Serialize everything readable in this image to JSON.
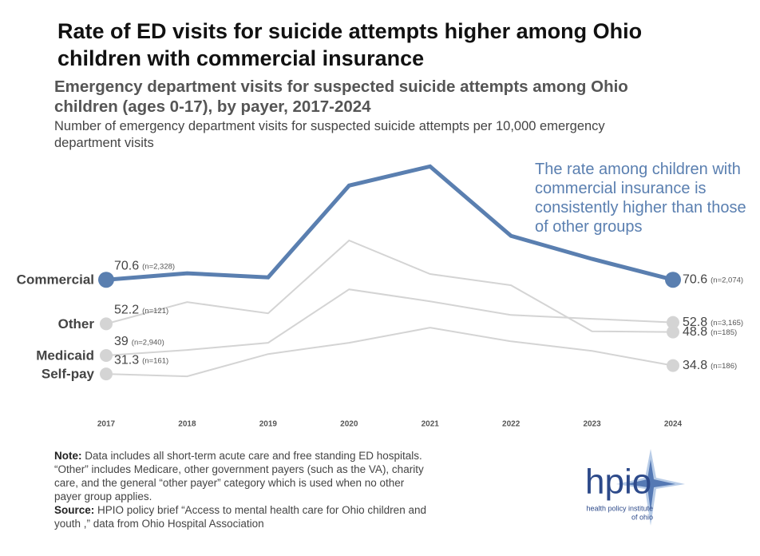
{
  "chart_data": {
    "type": "line",
    "title": "Rate of ED visits for suicide attempts higher among Ohio children with commercial insurance",
    "subtitle": "Emergency department visits for suspected suicide attempts among Ohio children (ages 0-17), by payer, 2017-2024",
    "y_label": "Number of emergency department visits for suspected suicide attempts per 10,000 emergency department visits",
    "annotation": "The rate among children with commercial insurance is consistently higher than those of other groups",
    "categories": [
      "2017",
      "2018",
      "2019",
      "2020",
      "2021",
      "2022",
      "2023",
      "2024"
    ],
    "ylim": [
      20,
      130
    ],
    "series": [
      {
        "name": "Commercial",
        "color": "#5a7fb0",
        "line_width": 5,
        "values": [
          70.6,
          73.3,
          71.6,
          109.9,
          117.9,
          88.9,
          79.3,
          70.6
        ],
        "n_labels": [
          "(n=2,328)",
          "(n=2,074)"
        ]
      },
      {
        "name": "Other",
        "color": "#d4d4d4",
        "line_width": 2,
        "values": [
          52.2,
          61.3,
          56.6,
          87.0,
          73.0,
          68.3,
          49.1,
          48.8
        ],
        "n_labels": [
          "(n=121)",
          "(n=185)"
        ]
      },
      {
        "name": "Medicaid",
        "color": "#d4d4d4",
        "line_width": 2,
        "values": [
          39,
          41.3,
          44.3,
          66.6,
          61.6,
          55.9,
          54.3,
          52.8
        ],
        "n_labels": [
          "(n=2,940)",
          "(n=3,165)"
        ]
      },
      {
        "name": "Self-pay",
        "color": "#d4d4d4",
        "line_width": 2,
        "values": [
          31.3,
          30.3,
          39.6,
          44.3,
          50.6,
          44.9,
          40.9,
          34.8
        ],
        "n_labels": [
          "(n=161)",
          "(n=186)"
        ]
      }
    ]
  },
  "note": {
    "label": "Note:",
    "text": "Data includes all short-term acute care and free standing ED hospitals. “Other” includes Medicare, other government payers (such as the VA), charity care, and the general “other payer” category which is used when no other payer group applies."
  },
  "source": {
    "label": "Source:",
    "text": "HPIO policy brief “Access to mental health care for Ohio children and youth ,” data from Ohio Hospital Association"
  },
  "logo": {
    "name": "hpio",
    "tagline": [
      "health policy institute",
      "of ohio"
    ]
  }
}
